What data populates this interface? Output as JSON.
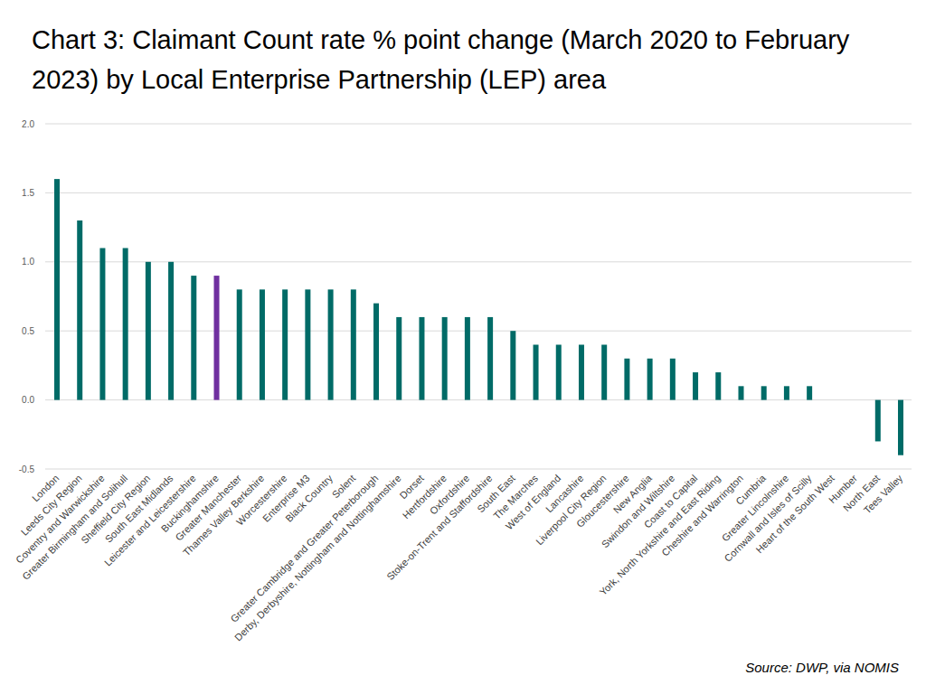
{
  "chart_data": {
    "type": "bar",
    "title": "Chart 3: Claimant Count rate % point change (March 2020 to February 2023) by Local Enterprise Partnership (LEP) area",
    "source": "Source: DWP, via NOMIS",
    "categories": [
      "London",
      "Leeds City Region",
      "Coventry and Warwickshire",
      "Greater Birmingham and Solihull",
      "Sheffield City Region",
      "South East Midlands",
      "Leicester and Leicestershire",
      "Buckinghamshire",
      "Greater Manchester",
      "Thames Valley Berkshire",
      "Worcestershire",
      "Enterprise M3",
      "Black Country",
      "Solent",
      "Greater Cambridge and Greater Peterborough",
      "Derby, Derbyshire, Nottingham and Nottinghamshire",
      "Dorset",
      "Hertfordshire",
      "Oxfordshire",
      "Stoke-on-Trent and Staffordshire",
      "South East",
      "The Marches",
      "West of England",
      "Lancashire",
      "Liverpool City Region",
      "Gloucestershire",
      "New Anglia",
      "Swindon and Wiltshire",
      "Coast to Capital",
      "York, North Yorkshire and East Riding",
      "Cheshire and Warrington",
      "Cumbria",
      "Greater Lincolnshire",
      "Cornwall and Isles of Scilly",
      "Heart of the South West",
      "Humber",
      "North East",
      "Tees Valley"
    ],
    "values": [
      1.6,
      1.3,
      1.1,
      1.1,
      1.0,
      1.0,
      0.9,
      0.9,
      0.8,
      0.8,
      0.8,
      0.8,
      0.8,
      0.8,
      0.7,
      0.6,
      0.6,
      0.6,
      0.6,
      0.6,
      0.5,
      0.4,
      0.4,
      0.4,
      0.4,
      0.3,
      0.3,
      0.3,
      0.2,
      0.2,
      0.1,
      0.1,
      0.1,
      0.1,
      0.0,
      0.0,
      -0.3,
      -0.4
    ],
    "colors": [
      "#006b67",
      "#006b67",
      "#006b67",
      "#006b67",
      "#006b67",
      "#006b67",
      "#006b67",
      "#7030a0",
      "#006b67",
      "#006b67",
      "#006b67",
      "#006b67",
      "#006b67",
      "#006b67",
      "#006b67",
      "#006b67",
      "#006b67",
      "#006b67",
      "#006b67",
      "#006b67",
      "#006b67",
      "#006b67",
      "#006b67",
      "#006b67",
      "#006b67",
      "#006b67",
      "#006b67",
      "#006b67",
      "#006b67",
      "#006b67",
      "#006b67",
      "#006b67",
      "#006b67",
      "#006b67",
      "#006b67",
      "#006b67",
      "#006b67",
      "#006b67"
    ],
    "ylim": [
      -0.5,
      2.0
    ],
    "yticks": [
      -0.5,
      {
        "value": 0,
        "label": "0.0"
      },
      0.5,
      {
        "value": 1,
        "label": "1.0"
      },
      1.5,
      {
        "value": 2,
        "label": "2.0"
      }
    ],
    "grid": true
  }
}
